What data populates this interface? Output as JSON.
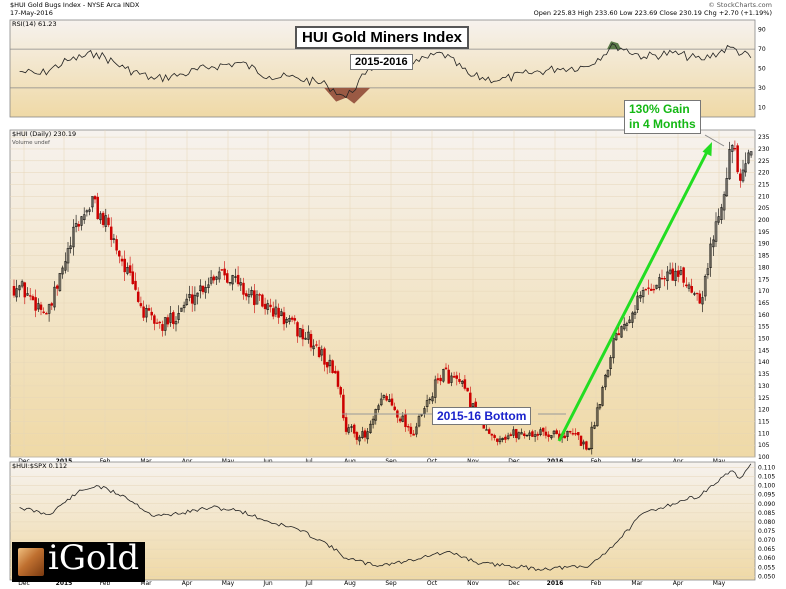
{
  "header": {
    "symbol_line": "$HUI Gold Bugs Index - NYSE Arca  INDX",
    "date": "17-May-2016",
    "ohlc": "Open 225.83  High 233.60  Low 223.69  Close 230.19  Chg +2.70 (+1.19%)",
    "credit": "© StockCharts.com"
  },
  "annotations": {
    "title": "HUI Gold Miners Index",
    "period": "2015-2016",
    "gain_line1": "130% Gain",
    "gain_line2": "in 4 Months",
    "bottom": "2015-16 Bottom"
  },
  "logo": {
    "text": "iGold"
  },
  "colors": {
    "panel_top": "#f6f2ee",
    "panel_bottom": "#efd9a6",
    "up_candle": "#000000",
    "down_candle": "#cc0000",
    "arrow": "#22dd22",
    "gain_text": "#14b814",
    "bottom_text": "#1a22cc",
    "rsi_oversold_fill": "#9a5a44",
    "rsi_overbought_fill": "#5a7a48"
  },
  "chart_data": [
    {
      "type": "line",
      "name": "RSI(14)",
      "legend": "RSI(14) 61.23",
      "ylim": [
        0,
        100
      ],
      "y_ticks": [
        10,
        30,
        50,
        70,
        90
      ],
      "reference_lines": [
        30,
        70
      ],
      "x": [
        "2014-12-01",
        "2014-12-16",
        "2015-01-05",
        "2015-01-26",
        "2015-02-16",
        "2015-03-09",
        "2015-03-30",
        "2015-04-20",
        "2015-05-11",
        "2015-06-01",
        "2015-06-22",
        "2015-07-13",
        "2015-07-27",
        "2015-08-10",
        "2015-08-24",
        "2015-09-14",
        "2015-10-05",
        "2015-10-26",
        "2015-11-16",
        "2015-12-07",
        "2015-12-28",
        "2016-01-18",
        "2016-02-08",
        "2016-02-29",
        "2016-03-21",
        "2016-04-11",
        "2016-05-02",
        "2016-05-17"
      ],
      "y": [
        47,
        44,
        58,
        66,
        50,
        39,
        44,
        52,
        56,
        42,
        40,
        33,
        20,
        44,
        62,
        55,
        66,
        42,
        38,
        45,
        50,
        52,
        74,
        62,
        66,
        59,
        72,
        61
      ]
    },
    {
      "type": "candlestick",
      "name": "$HUI (Daily)",
      "legend": "$HUI (Daily) 230.19",
      "legend2": "Volume undef",
      "ylim": [
        100,
        238
      ],
      "y_ticks": [
        100,
        105,
        110,
        115,
        120,
        125,
        130,
        135,
        140,
        145,
        150,
        155,
        160,
        165,
        170,
        175,
        180,
        185,
        190,
        195,
        200,
        205,
        210,
        215,
        220,
        225,
        230,
        235
      ],
      "x_labels": [
        "Dec",
        "2015",
        "Feb",
        "Mar",
        "Apr",
        "May",
        "Jun",
        "Jul",
        "Aug",
        "Sep",
        "Oct",
        "Nov",
        "Dec",
        "2016",
        "Feb",
        "Mar",
        "Apr",
        "May"
      ],
      "x": [
        "2014-12-01",
        "2014-12-22",
        "2015-01-12",
        "2015-01-23",
        "2015-02-09",
        "2015-03-02",
        "2015-03-16",
        "2015-04-06",
        "2015-04-27",
        "2015-05-18",
        "2015-06-08",
        "2015-06-29",
        "2015-07-20",
        "2015-07-27",
        "2015-08-10",
        "2015-08-24",
        "2015-09-14",
        "2015-10-05",
        "2015-10-19",
        "2015-11-09",
        "2015-11-30",
        "2015-12-21",
        "2016-01-11",
        "2016-01-19",
        "2016-02-08",
        "2016-02-29",
        "2016-03-21",
        "2016-04-11",
        "2016-04-25",
        "2016-05-03",
        "2016-05-10",
        "2016-05-17"
      ],
      "close": [
        172,
        160,
        198,
        208,
        190,
        160,
        155,
        168,
        180,
        168,
        160,
        150,
        135,
        112,
        108,
        126,
        110,
        136,
        130,
        108,
        110,
        110,
        109,
        103,
        152,
        170,
        178,
        168,
        208,
        232,
        214,
        230
      ]
    },
    {
      "type": "line",
      "name": "$HUI:$SPX",
      "legend": "$HUI:$SPX 0.112",
      "ylim": [
        0.048,
        0.113
      ],
      "y_ticks": [
        0.05,
        0.055,
        0.06,
        0.065,
        0.07,
        0.075,
        0.08,
        0.085,
        0.09,
        0.095,
        0.1,
        0.105,
        0.11
      ],
      "x": [
        "2014-12-01",
        "2014-12-22",
        "2015-01-12",
        "2015-01-26",
        "2015-02-16",
        "2015-03-09",
        "2015-03-30",
        "2015-04-20",
        "2015-05-11",
        "2015-06-01",
        "2015-06-22",
        "2015-07-13",
        "2015-07-27",
        "2015-08-17",
        "2015-09-07",
        "2015-09-28",
        "2015-10-12",
        "2015-11-02",
        "2015-11-23",
        "2015-12-14",
        "2016-01-04",
        "2016-01-19",
        "2016-02-08",
        "2016-02-29",
        "2016-03-21",
        "2016-04-11",
        "2016-05-02",
        "2016-05-09",
        "2016-05-17"
      ],
      "y": [
        0.088,
        0.084,
        0.096,
        0.1,
        0.094,
        0.083,
        0.085,
        0.088,
        0.086,
        0.08,
        0.076,
        0.068,
        0.06,
        0.056,
        0.058,
        0.062,
        0.063,
        0.057,
        0.056,
        0.054,
        0.055,
        0.055,
        0.068,
        0.085,
        0.09,
        0.095,
        0.108,
        0.104,
        0.112
      ]
    }
  ]
}
